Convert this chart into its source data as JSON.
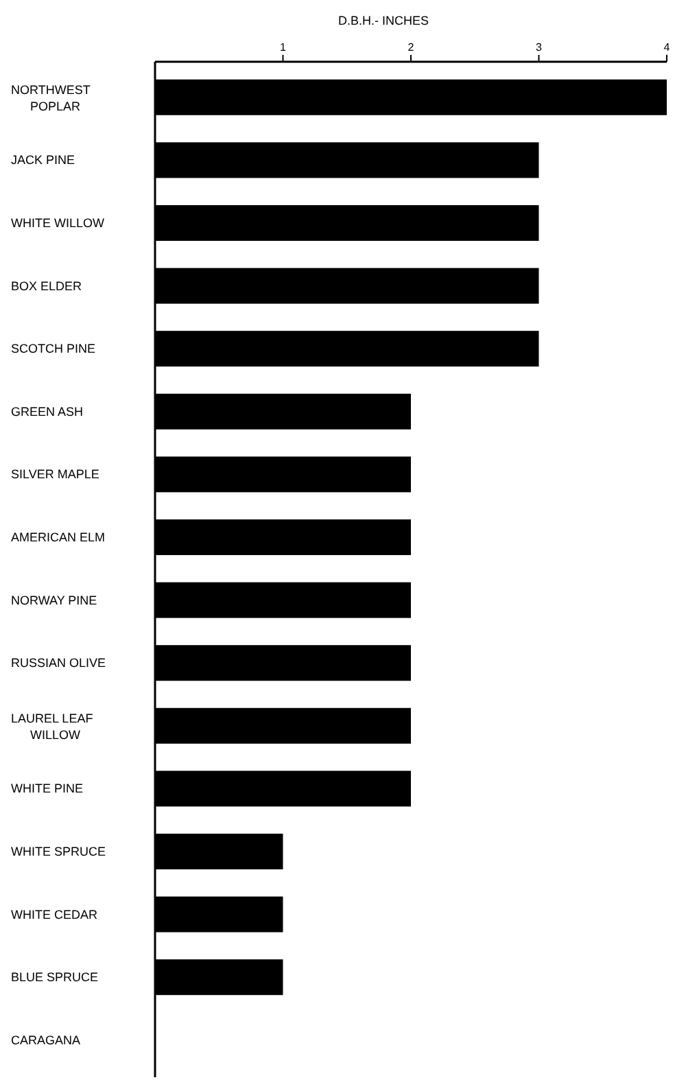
{
  "chart_data": {
    "type": "bar",
    "orientation": "horizontal",
    "xlabel": "D.B.H.- INCHES",
    "categories": [
      "NORTHWEST\nPOPLAR",
      "JACK PINE",
      "WHITE WILLOW",
      "BOX ELDER",
      "SCOTCH PINE",
      "GREEN ASH",
      "SILVER MAPLE",
      "AMERICAN ELM",
      "NORWAY PINE",
      "RUSSIAN OLIVE",
      "LAUREL LEAF\nWILLOW",
      "WHITE PINE",
      "WHITE SPRUCE",
      "WHITE CEDAR",
      "BLUE SPRUCE",
      "CARAGANA"
    ],
    "values": [
      4,
      3,
      3,
      3,
      3,
      2,
      2,
      2,
      2,
      2,
      2,
      2,
      1,
      1,
      1,
      0
    ],
    "color": "#000000",
    "xlim": [
      0,
      4
    ],
    "xticks": [
      1,
      2,
      3,
      4
    ],
    "grid": false
  }
}
